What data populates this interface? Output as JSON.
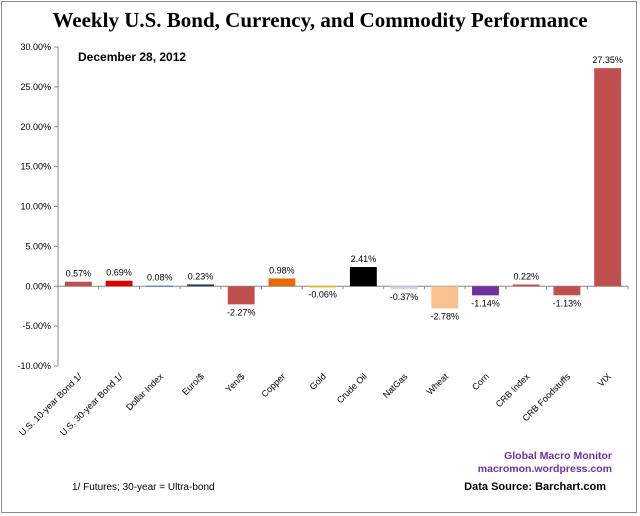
{
  "chart_data": {
    "type": "bar",
    "title": "Weekly U.S. Bond, Currency, and Commodity Performance",
    "subtitle": "December 28, 2012",
    "categories": [
      "U.S. 10-year Bond 1/",
      "U.S. 30-year Bond 1/",
      "Dollar Index",
      "Euro/$",
      "Yen/$",
      "Copper",
      "Gold",
      "Crude Oil",
      "NatGas",
      "Wheat",
      "Corn",
      "CRB Index",
      "CRB Foodstuffs",
      "VIX"
    ],
    "values": [
      0.57,
      0.69,
      0.08,
      0.23,
      -2.27,
      0.98,
      -0.06,
      2.41,
      -0.37,
      -2.78,
      -1.14,
      0.22,
      -1.13,
      27.35
    ],
    "data_labels": [
      "0.57%",
      "0.69%",
      "0.08%",
      "0.23%",
      "-2.27%",
      "0.98%",
      "-0.06%",
      "2.41%",
      "-0.37%",
      "-2.78%",
      "-1.14%",
      "0.22%",
      "-1.13%",
      "27.35%"
    ],
    "bar_colors": [
      "#c0504d",
      "#e00000",
      "#4f81bd",
      "#1f3864",
      "#c0504d",
      "#e36c09",
      "#ffc000",
      "#000000",
      "#c5d9f1",
      "#fac090",
      "#7030a0",
      "#c0504d",
      "#c0504d",
      "#c0504d"
    ],
    "ylim": [
      -10,
      30
    ],
    "yticks": [
      -10,
      -5,
      0,
      5,
      10,
      15,
      20,
      25,
      30
    ],
    "ytick_labels": [
      "-10.00%",
      "-5.00%",
      "0.00%",
      "5.00%",
      "10.00%",
      "15.00%",
      "20.00%",
      "25.00%",
      "30.00%"
    ],
    "grid": false,
    "legend": "none"
  },
  "notes": {
    "footnote": "1/ Futures; 30-year = Ultra-bond",
    "credit_line1": "Global Macro Monitor",
    "credit_line2": "macromon.wordpress.com",
    "source": "Data Source:  Barchart.com"
  }
}
